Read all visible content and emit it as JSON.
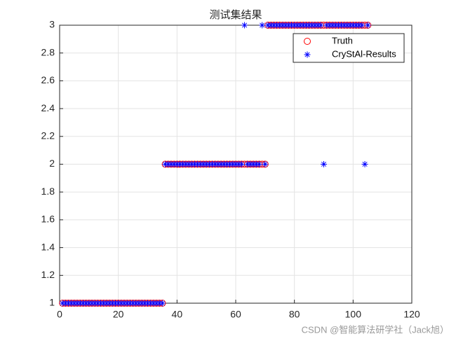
{
  "chart_data": {
    "type": "scatter",
    "title": "测试集结果",
    "x": [
      1,
      2,
      3,
      4,
      5,
      6,
      7,
      8,
      9,
      10,
      11,
      12,
      13,
      14,
      15,
      16,
      17,
      18,
      19,
      20,
      21,
      22,
      23,
      24,
      25,
      26,
      27,
      28,
      29,
      30,
      31,
      32,
      33,
      34,
      35,
      36,
      37,
      38,
      39,
      40,
      41,
      42,
      43,
      44,
      45,
      46,
      47,
      48,
      49,
      50,
      51,
      52,
      53,
      54,
      55,
      56,
      57,
      58,
      59,
      60,
      61,
      62,
      63,
      64,
      65,
      66,
      67,
      68,
      69,
      70,
      71,
      72,
      73,
      74,
      75,
      76,
      77,
      78,
      79,
      80,
      81,
      82,
      83,
      84,
      85,
      86,
      87,
      88,
      89,
      90,
      91,
      92,
      93,
      94,
      95,
      96,
      97,
      98,
      99,
      100,
      101,
      102,
      103,
      104,
      105
    ],
    "series": [
      {
        "name": "Truth",
        "color": "#ff0000",
        "marker": "circle",
        "values": [
          1,
          1,
          1,
          1,
          1,
          1,
          1,
          1,
          1,
          1,
          1,
          1,
          1,
          1,
          1,
          1,
          1,
          1,
          1,
          1,
          1,
          1,
          1,
          1,
          1,
          1,
          1,
          1,
          1,
          1,
          1,
          1,
          1,
          1,
          1,
          2,
          2,
          2,
          2,
          2,
          2,
          2,
          2,
          2,
          2,
          2,
          2,
          2,
          2,
          2,
          2,
          2,
          2,
          2,
          2,
          2,
          2,
          2,
          2,
          2,
          2,
          2,
          2,
          2,
          2,
          2,
          2,
          2,
          2,
          2,
          3,
          3,
          3,
          3,
          3,
          3,
          3,
          3,
          3,
          3,
          3,
          3,
          3,
          3,
          3,
          3,
          3,
          3,
          3,
          3,
          3,
          3,
          3,
          3,
          3,
          3,
          3,
          3,
          3,
          3,
          3,
          3,
          3,
          3,
          3
        ]
      },
      {
        "name": "CryStAl-Results",
        "color": "#0000ff",
        "marker": "asterisk",
        "values": [
          1,
          1,
          1,
          1,
          1,
          1,
          1,
          1,
          1,
          1,
          1,
          1,
          1,
          1,
          1,
          1,
          1,
          1,
          1,
          1,
          1,
          1,
          1,
          1,
          1,
          1,
          1,
          1,
          1,
          1,
          1,
          1,
          1,
          1,
          1,
          2,
          2,
          2,
          2,
          2,
          2,
          2,
          2,
          2,
          2,
          2,
          2,
          2,
          2,
          2,
          2,
          2,
          2,
          2,
          2,
          2,
          2,
          2,
          2,
          2,
          2,
          2,
          3,
          2,
          2,
          2,
          2,
          2,
          3,
          2,
          3,
          3,
          3,
          3,
          3,
          3,
          3,
          3,
          3,
          3,
          3,
          3,
          3,
          3,
          3,
          3,
          3,
          3,
          3,
          2,
          3,
          3,
          3,
          3,
          3,
          3,
          3,
          3,
          3,
          3,
          3,
          3,
          3,
          2,
          3
        ]
      }
    ],
    "xlim": [
      0,
      120
    ],
    "xticks": [
      0,
      20,
      40,
      60,
      80,
      100,
      120
    ],
    "ylim": [
      1,
      3
    ],
    "yticks": [
      1,
      1.2,
      1.4,
      1.6,
      1.8,
      2,
      2.2,
      2.4,
      2.6,
      2.8,
      3
    ],
    "grid": true,
    "legend": "northeast"
  },
  "watermark": "CSDN @智能算法研学社（Jack旭）"
}
